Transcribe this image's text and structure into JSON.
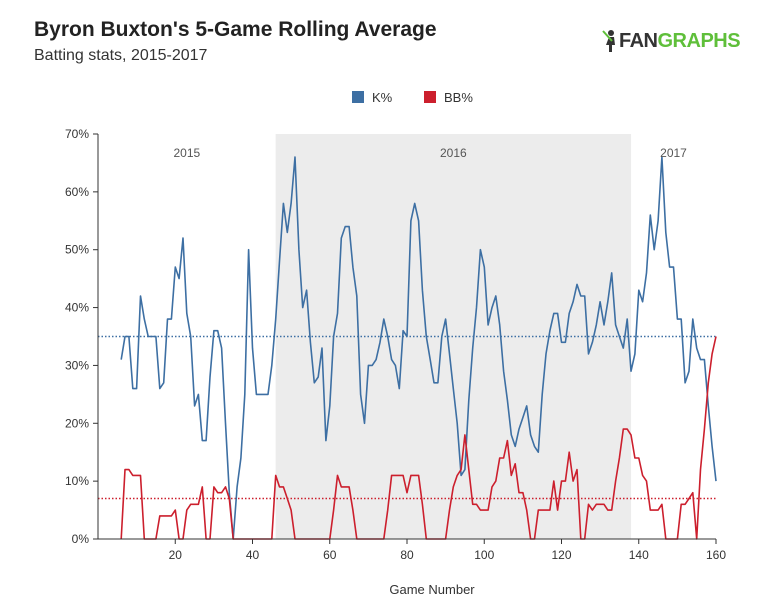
{
  "header": {
    "title": "Byron Buxton's 5-Game Rolling Average",
    "subtitle": "Batting stats, 2015-2017"
  },
  "logo": {
    "prefix": "FAN",
    "suffix": "GRAPHS",
    "brand_color": "#5fbf3a"
  },
  "colors": {
    "k": "#3d6fa3",
    "bb": "#cc1f2d",
    "shade": "#ececec"
  },
  "chart_data": {
    "type": "line",
    "title": "Byron Buxton's 5-Game Rolling Average",
    "subtitle": "Batting stats, 2015-2017",
    "xlabel": "Game Number",
    "ylabel": "",
    "xlim": [
      0,
      160
    ],
    "ylim": [
      0,
      0.7
    ],
    "xticks": [
      20,
      40,
      60,
      80,
      100,
      120,
      140,
      160
    ],
    "yticks": [
      0,
      0.1,
      0.2,
      0.3,
      0.4,
      0.5,
      0.6,
      0.7
    ],
    "ytick_labels": [
      "0%",
      "10%",
      "20%",
      "30%",
      "40%",
      "50%",
      "60%",
      "70%"
    ],
    "legend": {
      "position": "top-center",
      "entries": [
        "K%",
        "BB%"
      ]
    },
    "seasons": [
      {
        "label": "2015",
        "start": 0,
        "end": 46,
        "shaded": false
      },
      {
        "label": "2016",
        "start": 46,
        "end": 138,
        "shaded": true
      },
      {
        "label": "2017",
        "start": 138,
        "end": 160,
        "shaded": false
      }
    ],
    "reference_lines": [
      {
        "series": "K%",
        "value": 0.35,
        "style": "dotted"
      },
      {
        "series": "BB%",
        "value": 0.07,
        "style": "dotted"
      }
    ],
    "series": [
      {
        "name": "K%",
        "color": "#3d6fa3",
        "points": [
          [
            6,
            0.31
          ],
          [
            7,
            0.35
          ],
          [
            8,
            0.35
          ],
          [
            9,
            0.26
          ],
          [
            10,
            0.26
          ],
          [
            11,
            0.42
          ],
          [
            12,
            0.38
          ],
          [
            13,
            0.35
          ],
          [
            14,
            0.35
          ],
          [
            15,
            0.35
          ],
          [
            16,
            0.26
          ],
          [
            17,
            0.27
          ],
          [
            18,
            0.38
          ],
          [
            19,
            0.38
          ],
          [
            20,
            0.47
          ],
          [
            21,
            0.45
          ],
          [
            22,
            0.52
          ],
          [
            23,
            0.39
          ],
          [
            24,
            0.35
          ],
          [
            25,
            0.23
          ],
          [
            26,
            0.25
          ],
          [
            27,
            0.17
          ],
          [
            28,
            0.17
          ],
          [
            29,
            0.28
          ],
          [
            30,
            0.36
          ],
          [
            31,
            0.36
          ],
          [
            32,
            0.33
          ],
          [
            33,
            0.2
          ],
          [
            34,
            0.08
          ],
          [
            35,
            0.0
          ],
          [
            36,
            0.09
          ],
          [
            37,
            0.14
          ],
          [
            38,
            0.25
          ],
          [
            39,
            0.5
          ],
          [
            40,
            0.33
          ],
          [
            41,
            0.25
          ],
          [
            42,
            0.25
          ],
          [
            43,
            0.25
          ],
          [
            44,
            0.25
          ],
          [
            45,
            0.3
          ],
          [
            46,
            0.38
          ],
          [
            47,
            0.48
          ],
          [
            48,
            0.58
          ],
          [
            49,
            0.53
          ],
          [
            50,
            0.58
          ],
          [
            51,
            0.66
          ],
          [
            52,
            0.5
          ],
          [
            53,
            0.4
          ],
          [
            54,
            0.43
          ],
          [
            55,
            0.34
          ],
          [
            56,
            0.27
          ],
          [
            57,
            0.28
          ],
          [
            58,
            0.33
          ],
          [
            59,
            0.17
          ],
          [
            60,
            0.23
          ],
          [
            61,
            0.35
          ],
          [
            62,
            0.39
          ],
          [
            63,
            0.52
          ],
          [
            64,
            0.54
          ],
          [
            65,
            0.54
          ],
          [
            66,
            0.47
          ],
          [
            67,
            0.42
          ],
          [
            68,
            0.25
          ],
          [
            69,
            0.2
          ],
          [
            70,
            0.3
          ],
          [
            71,
            0.3
          ],
          [
            72,
            0.31
          ],
          [
            73,
            0.34
          ],
          [
            74,
            0.38
          ],
          [
            75,
            0.35
          ],
          [
            76,
            0.31
          ],
          [
            77,
            0.3
          ],
          [
            78,
            0.26
          ],
          [
            79,
            0.36
          ],
          [
            80,
            0.35
          ],
          [
            81,
            0.55
          ],
          [
            82,
            0.58
          ],
          [
            83,
            0.55
          ],
          [
            84,
            0.43
          ],
          [
            85,
            0.35
          ],
          [
            86,
            0.31
          ],
          [
            87,
            0.27
          ],
          [
            88,
            0.27
          ],
          [
            89,
            0.35
          ],
          [
            90,
            0.38
          ],
          [
            91,
            0.32
          ],
          [
            92,
            0.26
          ],
          [
            93,
            0.2
          ],
          [
            94,
            0.11
          ],
          [
            95,
            0.12
          ],
          [
            96,
            0.24
          ],
          [
            97,
            0.33
          ],
          [
            98,
            0.4
          ],
          [
            99,
            0.5
          ],
          [
            100,
            0.47
          ],
          [
            101,
            0.37
          ],
          [
            102,
            0.4
          ],
          [
            103,
            0.42
          ],
          [
            104,
            0.37
          ],
          [
            105,
            0.29
          ],
          [
            106,
            0.24
          ],
          [
            107,
            0.18
          ],
          [
            108,
            0.16
          ],
          [
            109,
            0.19
          ],
          [
            110,
            0.21
          ],
          [
            111,
            0.23
          ],
          [
            112,
            0.18
          ],
          [
            113,
            0.16
          ],
          [
            114,
            0.15
          ],
          [
            115,
            0.25
          ],
          [
            116,
            0.32
          ],
          [
            117,
            0.36
          ],
          [
            118,
            0.39
          ],
          [
            119,
            0.39
          ],
          [
            120,
            0.34
          ],
          [
            121,
            0.34
          ],
          [
            122,
            0.39
          ],
          [
            123,
            0.41
          ],
          [
            124,
            0.44
          ],
          [
            125,
            0.42
          ],
          [
            126,
            0.42
          ],
          [
            127,
            0.32
          ],
          [
            128,
            0.34
          ],
          [
            129,
            0.37
          ],
          [
            130,
            0.41
          ],
          [
            131,
            0.37
          ],
          [
            132,
            0.41
          ],
          [
            133,
            0.46
          ],
          [
            134,
            0.37
          ],
          [
            135,
            0.35
          ],
          [
            136,
            0.33
          ],
          [
            137,
            0.38
          ],
          [
            138,
            0.29
          ],
          [
            139,
            0.32
          ],
          [
            140,
            0.43
          ],
          [
            141,
            0.41
          ],
          [
            142,
            0.46
          ],
          [
            143,
            0.56
          ],
          [
            144,
            0.5
          ],
          [
            145,
            0.55
          ],
          [
            146,
            0.66
          ],
          [
            147,
            0.53
          ],
          [
            148,
            0.47
          ],
          [
            149,
            0.47
          ],
          [
            150,
            0.38
          ],
          [
            151,
            0.38
          ],
          [
            152,
            0.27
          ],
          [
            153,
            0.29
          ],
          [
            154,
            0.38
          ],
          [
            155,
            0.33
          ],
          [
            156,
            0.31
          ],
          [
            157,
            0.31
          ],
          [
            158,
            0.23
          ],
          [
            159,
            0.16
          ],
          [
            160,
            0.1
          ]
        ]
      },
      {
        "name": "BB%",
        "color": "#cc1f2d",
        "points": [
          [
            6,
            0.0
          ],
          [
            7,
            0.12
          ],
          [
            8,
            0.12
          ],
          [
            9,
            0.11
          ],
          [
            10,
            0.11
          ],
          [
            11,
            0.11
          ],
          [
            12,
            0.0
          ],
          [
            13,
            0.0
          ],
          [
            14,
            0.0
          ],
          [
            15,
            0.0
          ],
          [
            16,
            0.04
          ],
          [
            17,
            0.04
          ],
          [
            18,
            0.04
          ],
          [
            19,
            0.04
          ],
          [
            20,
            0.05
          ],
          [
            21,
            0.0
          ],
          [
            22,
            0.0
          ],
          [
            23,
            0.05
          ],
          [
            24,
            0.06
          ],
          [
            25,
            0.06
          ],
          [
            26,
            0.06
          ],
          [
            27,
            0.09
          ],
          [
            28,
            0.0
          ],
          [
            29,
            0.0
          ],
          [
            30,
            0.09
          ],
          [
            31,
            0.08
          ],
          [
            32,
            0.08
          ],
          [
            33,
            0.09
          ],
          [
            34,
            0.07
          ],
          [
            35,
            0.0
          ],
          [
            36,
            0.0
          ],
          [
            37,
            0.0
          ],
          [
            38,
            0.0
          ],
          [
            39,
            0.0
          ],
          [
            40,
            0.0
          ],
          [
            41,
            0.0
          ],
          [
            42,
            0.0
          ],
          [
            43,
            0.0
          ],
          [
            44,
            0.0
          ],
          [
            45,
            0.0
          ],
          [
            46,
            0.11
          ],
          [
            47,
            0.09
          ],
          [
            48,
            0.09
          ],
          [
            49,
            0.07
          ],
          [
            50,
            0.05
          ],
          [
            51,
            0.0
          ],
          [
            52,
            0.0
          ],
          [
            53,
            0.0
          ],
          [
            54,
            0.0
          ],
          [
            55,
            0.0
          ],
          [
            56,
            0.0
          ],
          [
            57,
            0.0
          ],
          [
            58,
            0.0
          ],
          [
            59,
            0.0
          ],
          [
            60,
            0.0
          ],
          [
            61,
            0.05
          ],
          [
            62,
            0.11
          ],
          [
            63,
            0.09
          ],
          [
            64,
            0.09
          ],
          [
            65,
            0.09
          ],
          [
            66,
            0.05
          ],
          [
            67,
            0.0
          ],
          [
            68,
            0.0
          ],
          [
            69,
            0.0
          ],
          [
            70,
            0.0
          ],
          [
            71,
            0.0
          ],
          [
            72,
            0.0
          ],
          [
            73,
            0.0
          ],
          [
            74,
            0.0
          ],
          [
            75,
            0.05
          ],
          [
            76,
            0.11
          ],
          [
            77,
            0.11
          ],
          [
            78,
            0.11
          ],
          [
            79,
            0.11
          ],
          [
            80,
            0.08
          ],
          [
            81,
            0.11
          ],
          [
            82,
            0.11
          ],
          [
            83,
            0.11
          ],
          [
            84,
            0.06
          ],
          [
            85,
            0.0
          ],
          [
            86,
            0.0
          ],
          [
            87,
            0.0
          ],
          [
            88,
            0.0
          ],
          [
            89,
            0.0
          ],
          [
            90,
            0.0
          ],
          [
            91,
            0.05
          ],
          [
            92,
            0.09
          ],
          [
            93,
            0.11
          ],
          [
            94,
            0.12
          ],
          [
            95,
            0.18
          ],
          [
            96,
            0.12
          ],
          [
            97,
            0.06
          ],
          [
            98,
            0.06
          ],
          [
            99,
            0.05
          ],
          [
            100,
            0.05
          ],
          [
            101,
            0.05
          ],
          [
            102,
            0.09
          ],
          [
            103,
            0.1
          ],
          [
            104,
            0.14
          ],
          [
            105,
            0.14
          ],
          [
            106,
            0.17
          ],
          [
            107,
            0.11
          ],
          [
            108,
            0.13
          ],
          [
            109,
            0.08
          ],
          [
            110,
            0.08
          ],
          [
            111,
            0.05
          ],
          [
            112,
            0.0
          ],
          [
            113,
            0.0
          ],
          [
            114,
            0.05
          ],
          [
            115,
            0.05
          ],
          [
            116,
            0.05
          ],
          [
            117,
            0.05
          ],
          [
            118,
            0.1
          ],
          [
            119,
            0.05
          ],
          [
            120,
            0.1
          ],
          [
            121,
            0.1
          ],
          [
            122,
            0.15
          ],
          [
            123,
            0.1
          ],
          [
            124,
            0.12
          ],
          [
            125,
            0.0
          ],
          [
            126,
            0.0
          ],
          [
            127,
            0.06
          ],
          [
            128,
            0.05
          ],
          [
            129,
            0.06
          ],
          [
            130,
            0.06
          ],
          [
            131,
            0.06
          ],
          [
            132,
            0.05
          ],
          [
            133,
            0.05
          ],
          [
            134,
            0.1
          ],
          [
            135,
            0.14
          ],
          [
            136,
            0.19
          ],
          [
            137,
            0.19
          ],
          [
            138,
            0.18
          ],
          [
            139,
            0.14
          ],
          [
            140,
            0.14
          ],
          [
            141,
            0.11
          ],
          [
            142,
            0.1
          ],
          [
            143,
            0.05
          ],
          [
            144,
            0.05
          ],
          [
            145,
            0.05
          ],
          [
            146,
            0.06
          ],
          [
            147,
            0.0
          ],
          [
            148,
            0.0
          ],
          [
            149,
            0.0
          ],
          [
            150,
            0.0
          ],
          [
            151,
            0.06
          ],
          [
            152,
            0.06
          ],
          [
            153,
            0.07
          ],
          [
            154,
            0.08
          ],
          [
            155,
            0.0
          ],
          [
            156,
            0.12
          ],
          [
            157,
            0.19
          ],
          [
            158,
            0.27
          ],
          [
            159,
            0.32
          ],
          [
            160,
            0.35
          ]
        ]
      }
    ]
  }
}
